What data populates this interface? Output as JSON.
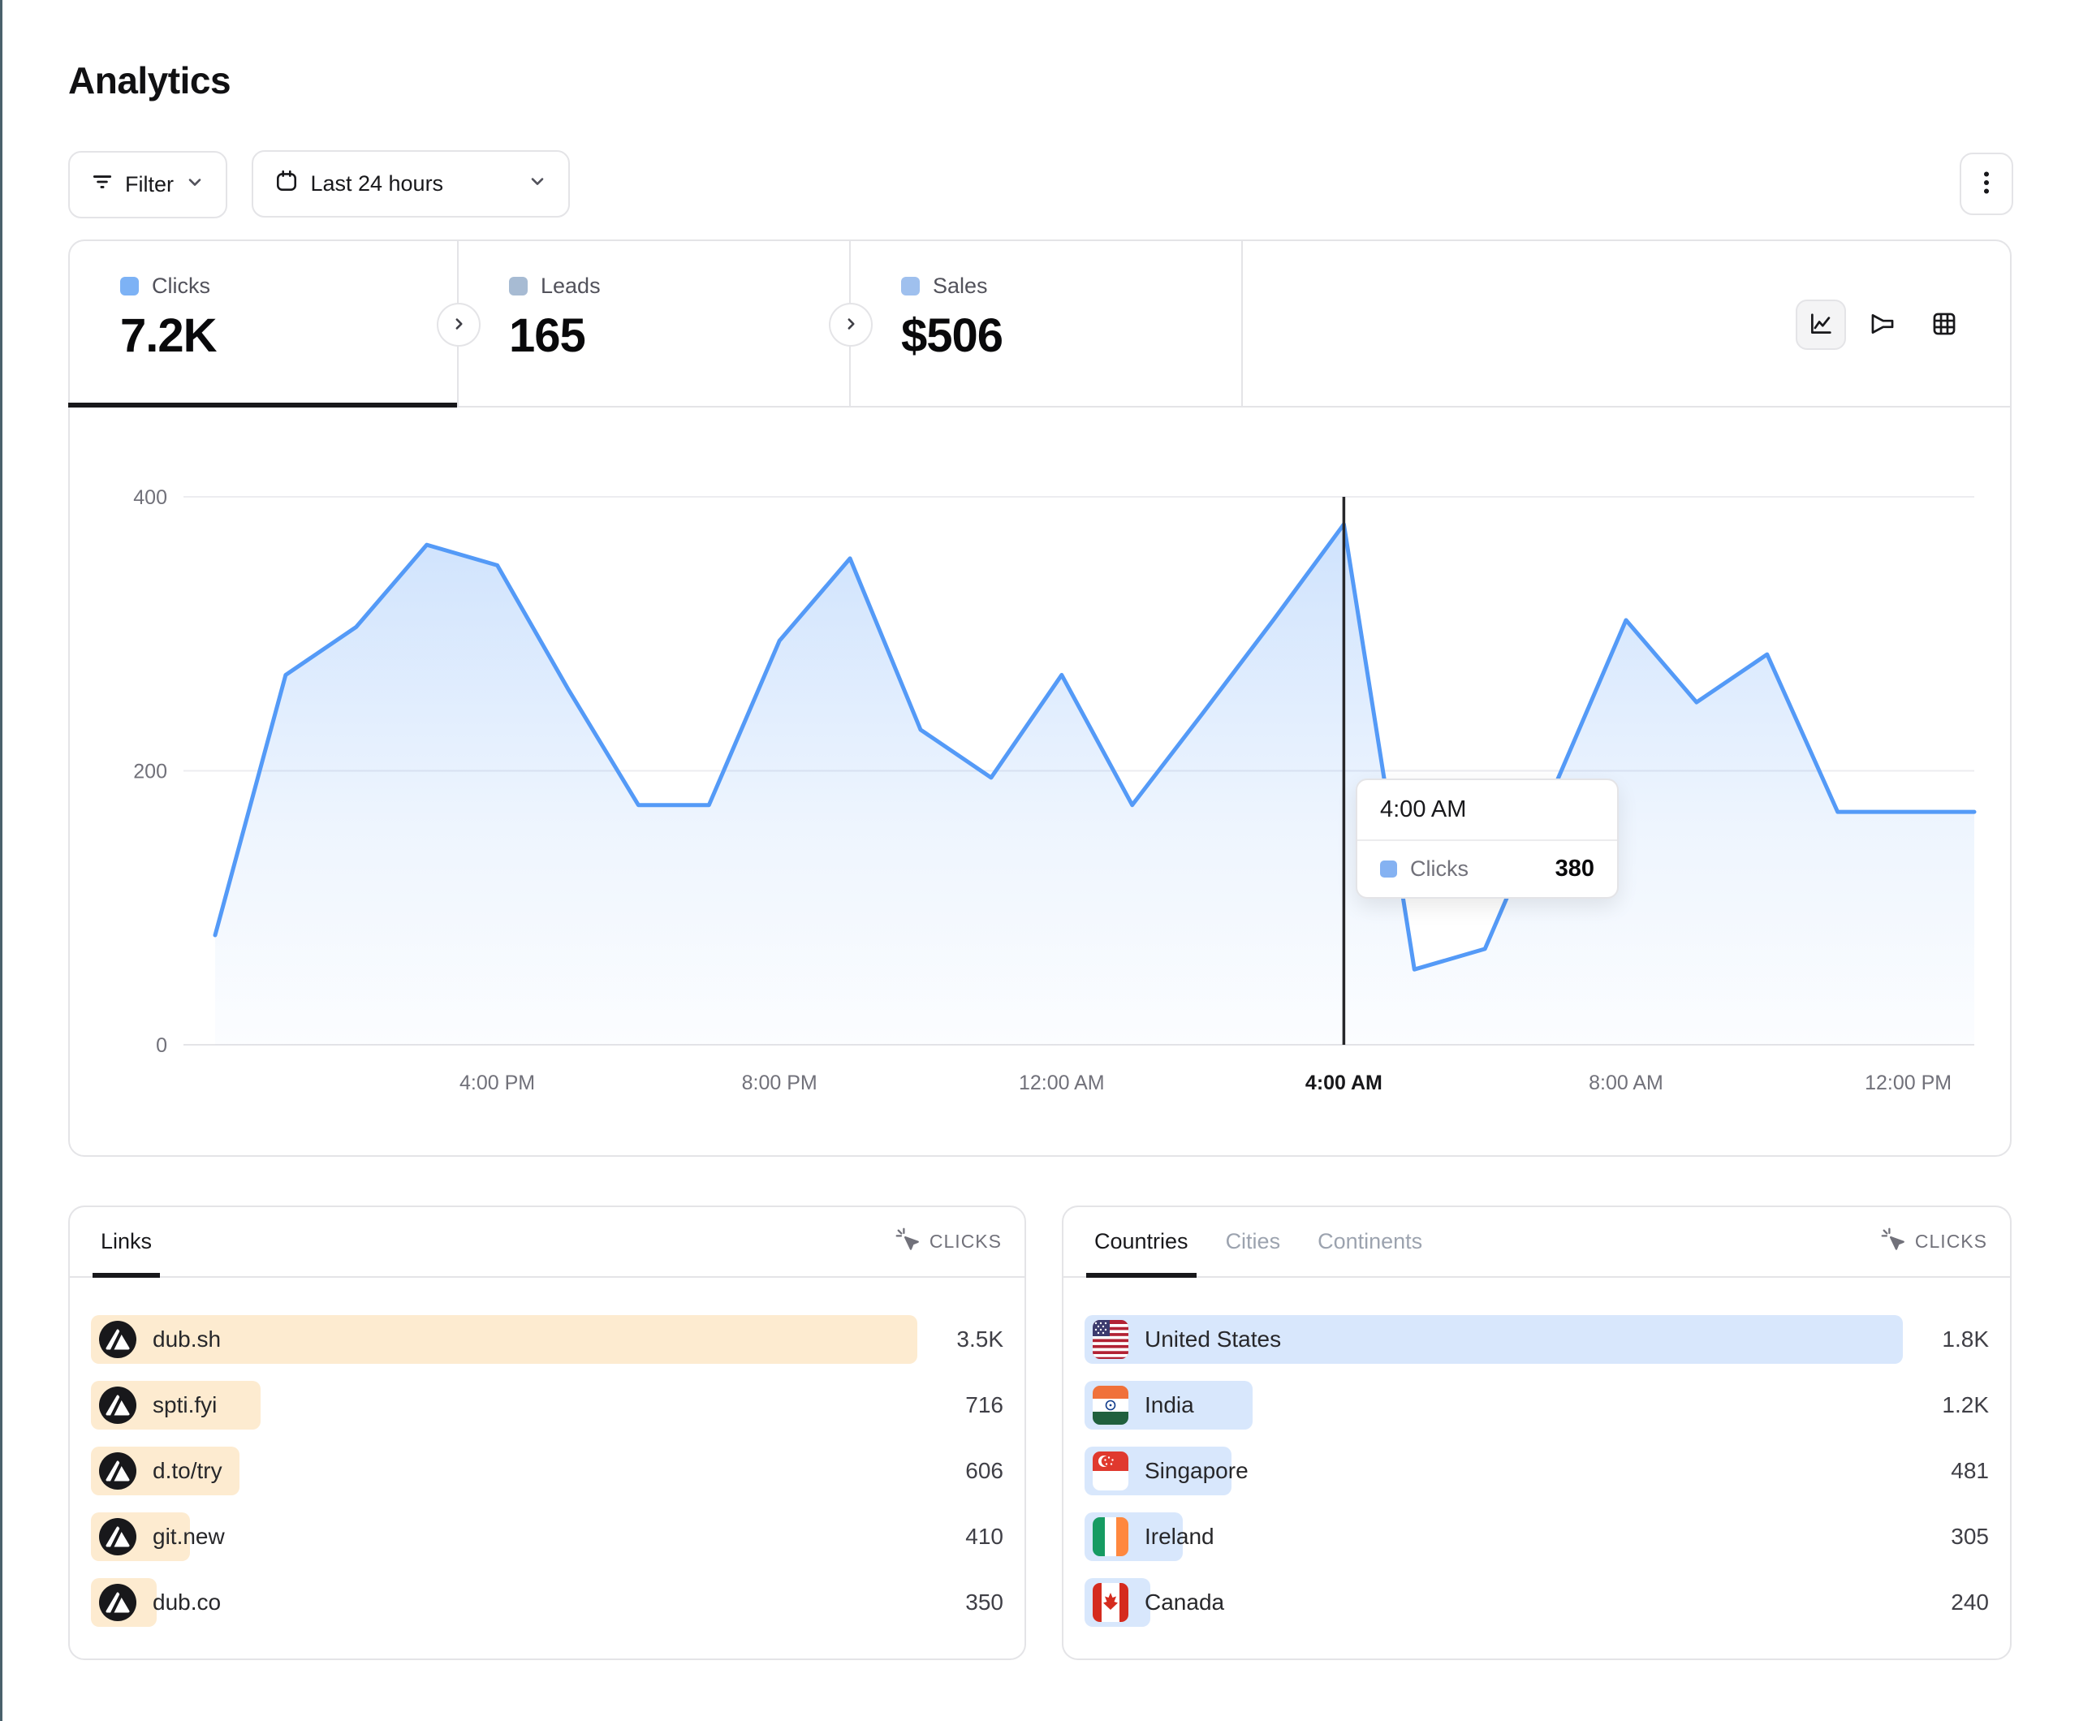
{
  "page": {
    "title": "Analytics",
    "edge_color": "#4a616c"
  },
  "toolbar": {
    "filter_label": "Filter",
    "date_range_label": "Last 24 hours"
  },
  "stats": {
    "tabs": [
      {
        "label": "Clicks",
        "value": "7.2K",
        "active": true,
        "square_color": "#7db2f5"
      },
      {
        "label": "Leads",
        "value": "165",
        "active": false,
        "square_color": "#a7bbd3"
      },
      {
        "label": "Sales",
        "value": "$506",
        "active": false,
        "square_color": "#9fc0ee"
      }
    ]
  },
  "chart_data": {
    "type": "area",
    "title": "Clicks over the last 24 hours",
    "series": [
      {
        "name": "Clicks",
        "x": [
          "12:00 PM",
          "1:00 PM",
          "2:00 PM",
          "3:00 PM",
          "4:00 PM",
          "5:00 PM",
          "6:00 PM",
          "7:00 PM",
          "8:00 PM",
          "9:00 PM",
          "10:00 PM",
          "11:00 PM",
          "12:00 AM",
          "1:00 AM",
          "2:00 AM",
          "3:00 AM",
          "4:00 AM",
          "5:00 AM",
          "6:00 AM",
          "7:00 AM",
          "8:00 AM",
          "9:00 AM",
          "10:00 AM",
          "11:00 AM",
          "12:00 PM"
        ],
        "values": [
          80,
          270,
          305,
          365,
          350,
          260,
          175,
          175,
          295,
          355,
          230,
          195,
          270,
          175,
          242,
          310,
          380,
          55,
          70,
          190,
          310,
          250,
          285,
          170,
          170
        ]
      }
    ],
    "x_tick_labels": [
      "4:00 PM",
      "8:00 PM",
      "12:00 AM",
      "4:00 AM",
      "8:00 AM",
      "12:00 PM"
    ],
    "x_tick_indices": [
      4,
      8,
      12,
      16,
      20,
      24
    ],
    "y_ticks": [
      0,
      200,
      400
    ],
    "ylim": [
      0,
      400
    ],
    "grid": true,
    "legend_position": "none",
    "hovered_index": 16,
    "line_color": "#549af7",
    "tooltip": {
      "title": "4:00 AM",
      "label": "Clicks",
      "value": "380",
      "square_color": "#85b2f2"
    }
  },
  "links_panel": {
    "tab_label": "Links",
    "metric_label": "CLICKS",
    "bar_color": "#fdebd0",
    "rows": [
      {
        "label": "dub.sh",
        "value": "3.5K",
        "bar_pct": 100
      },
      {
        "label": "spti.fyi",
        "value": "716",
        "bar_pct": 20.5
      },
      {
        "label": "d.to/try",
        "value": "606",
        "bar_pct": 18
      },
      {
        "label": "git.new",
        "value": "410",
        "bar_pct": 12
      },
      {
        "label": "dub.co",
        "value": "350",
        "bar_pct": 8
      }
    ]
  },
  "countries_panel": {
    "tabs": [
      {
        "label": "Countries",
        "active": true
      },
      {
        "label": "Cities",
        "active": false
      },
      {
        "label": "Continents",
        "active": false
      }
    ],
    "metric_label": "CLICKS",
    "bar_color": "#d8e7fc",
    "rows": [
      {
        "label": "United States",
        "flag": "us",
        "value": "1.8K",
        "bar_pct": 100
      },
      {
        "label": "India",
        "flag": "in",
        "value": "1.2K",
        "bar_pct": 20.5
      },
      {
        "label": "Singapore",
        "flag": "sg",
        "value": "481",
        "bar_pct": 18
      },
      {
        "label": "Ireland",
        "flag": "ie",
        "value": "305",
        "bar_pct": 12
      },
      {
        "label": "Canada",
        "flag": "ca",
        "value": "240",
        "bar_pct": 8
      }
    ]
  }
}
